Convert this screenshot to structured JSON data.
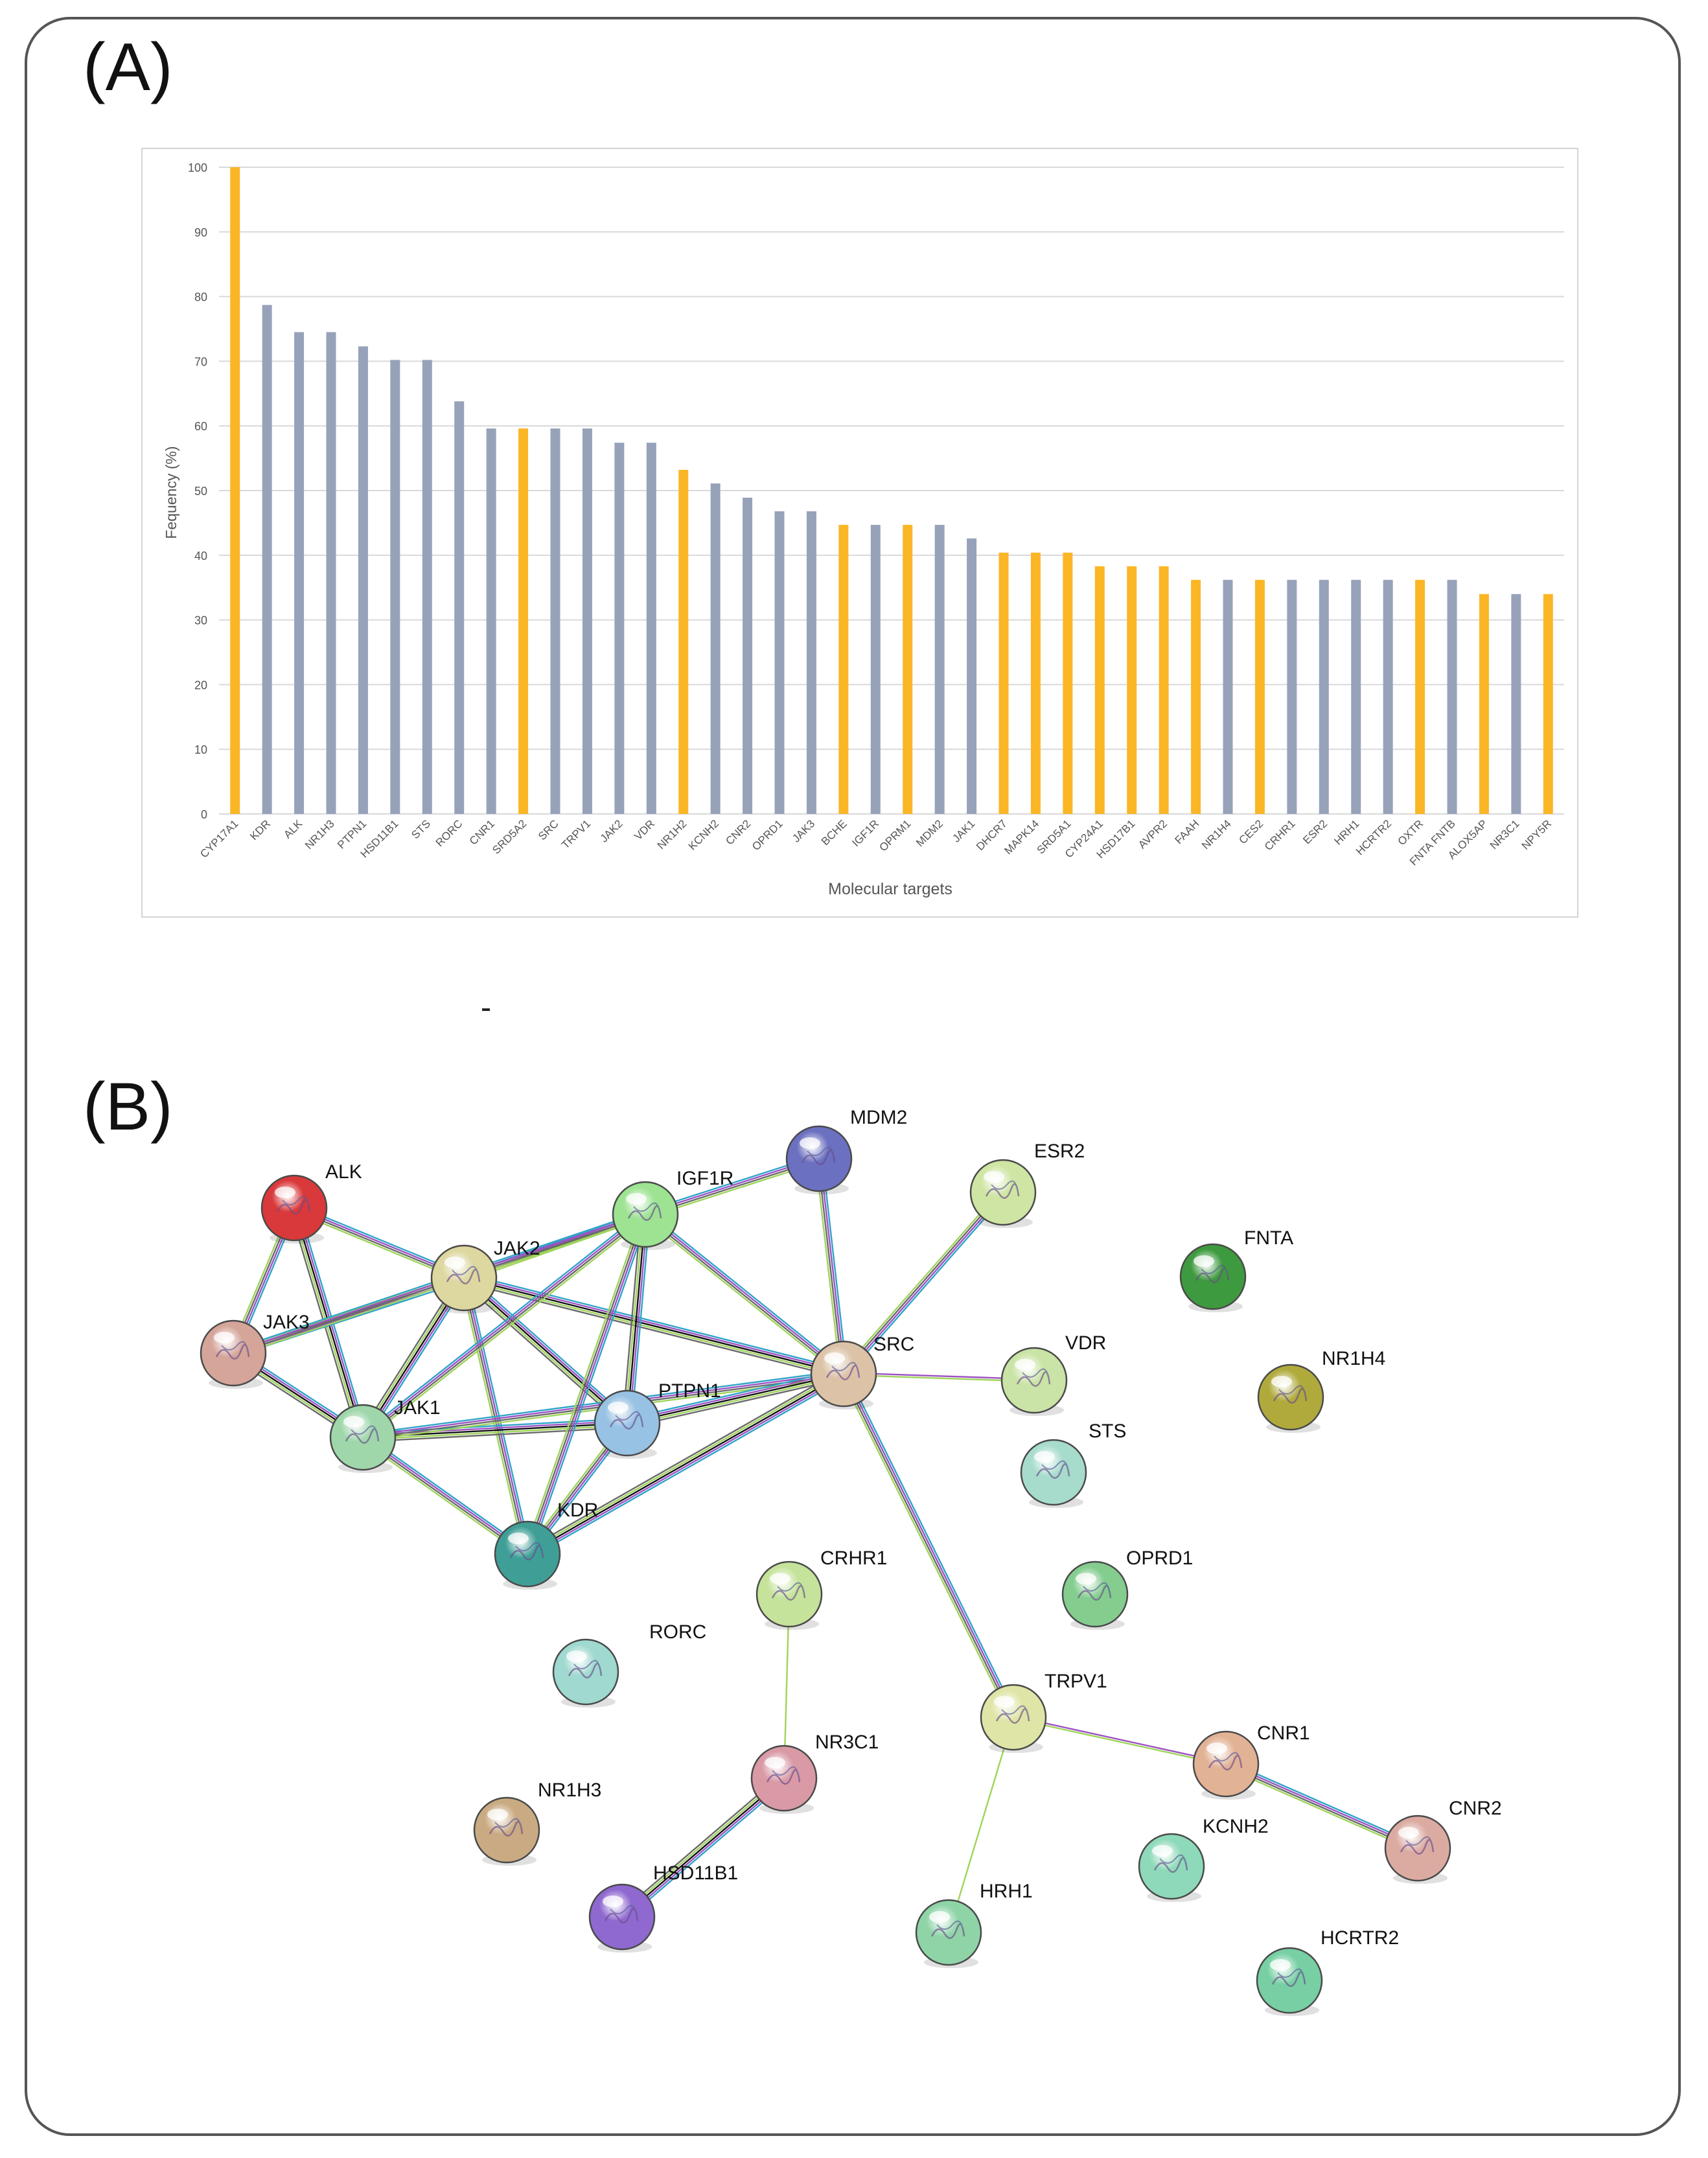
{
  "panels": {
    "a_label": "(A)",
    "b_label": "(B)"
  },
  "stray_mark": "-",
  "colors": {
    "highlight": "#FBB626",
    "default": "#97A2BA",
    "grid": "#d9d9d9",
    "axis_text": "#555555"
  },
  "chart_data": {
    "type": "bar",
    "title": "",
    "xlabel": "Molecular targets",
    "ylabel": "Fequency (%)",
    "ylim": [
      0,
      100
    ],
    "yticks": [
      0,
      10,
      20,
      30,
      40,
      50,
      60,
      70,
      80,
      90,
      100
    ],
    "grid": true,
    "categories": [
      "CYP17A1",
      "KDR",
      "ALK",
      "NR1H3",
      "PTPN1",
      "HSD11B1",
      "STS",
      "RORC",
      "CNR1",
      "SRD5A2",
      "SRC",
      "TRPV1",
      "JAK2",
      "VDR",
      "NR1H2",
      "KCNH2",
      "CNR2",
      "OPRD1",
      "JAK3",
      "BCHE",
      "IGF1R",
      "OPRM1",
      "MDM2",
      "JAK1",
      "DHCR7",
      "MAPK14",
      "SRD5A1",
      "CYP24A1",
      "HSD17B1",
      "AVPR2",
      "FAAH",
      "NR1H4",
      "CES2",
      "CRHR1",
      "ESR2",
      "HRH1",
      "HCRTR2",
      "OXTR",
      "FNTA FNTB",
      "ALOX5AP",
      "NR3C1",
      "NPY5R"
    ],
    "values": [
      100,
      78.7,
      74.5,
      74.5,
      72.3,
      70.2,
      70.2,
      63.8,
      59.6,
      59.6,
      59.6,
      59.6,
      57.4,
      57.4,
      53.2,
      51.1,
      48.9,
      46.8,
      46.8,
      44.7,
      44.7,
      44.7,
      44.7,
      42.6,
      40.4,
      40.4,
      40.4,
      38.3,
      38.3,
      38.3,
      36.2,
      36.2,
      36.2,
      36.2,
      36.2,
      36.2,
      36.2,
      36.2,
      36.2,
      34.0,
      34.0,
      34.0
    ],
    "highlighted": [
      true,
      false,
      false,
      false,
      false,
      false,
      false,
      false,
      false,
      true,
      false,
      false,
      false,
      false,
      true,
      false,
      false,
      false,
      false,
      true,
      false,
      true,
      false,
      false,
      true,
      true,
      true,
      true,
      true,
      true,
      true,
      false,
      true,
      false,
      false,
      false,
      false,
      true,
      false,
      true,
      false,
      true
    ]
  },
  "network": {
    "nodes": [
      {
        "id": "ALK",
        "label": "ALK",
        "color": "#d9393a",
        "icon": "protein-structure-icon"
      },
      {
        "id": "JAK2",
        "label": "JAK2",
        "color": "#ddd7a0",
        "icon": "protein-structure-icon"
      },
      {
        "id": "JAK3",
        "label": "JAK3",
        "color": "#d5a59a",
        "icon": "protein-structure-icon"
      },
      {
        "id": "JAK1",
        "label": "JAK1",
        "color": "#9fd7ab",
        "icon": "protein-structure-icon"
      },
      {
        "id": "IGF1R",
        "label": "IGF1R",
        "color": "#9de392",
        "icon": "protein-structure-icon"
      },
      {
        "id": "MDM2",
        "label": "MDM2",
        "color": "#6b70c0",
        "icon": "protein-structure-icon"
      },
      {
        "id": "ESR2",
        "label": "ESR2",
        "color": "#cfe5a3",
        "icon": "protein-structure-icon"
      },
      {
        "id": "FNTA",
        "label": "FNTA",
        "color": "#3e9a3e",
        "icon": "protein-structure-icon"
      },
      {
        "id": "PTPN1",
        "label": "PTPN1",
        "color": "#98c2e4",
        "icon": "protein-structure-icon"
      },
      {
        "id": "SRC",
        "label": "SRC",
        "color": "#dcc3a8",
        "icon": "protein-structure-icon"
      },
      {
        "id": "VDR",
        "label": "VDR",
        "color": "#c9e4a6",
        "icon": "protein-structure-icon"
      },
      {
        "id": "NR1H4",
        "label": "NR1H4",
        "color": "#b0aa3d",
        "icon": "protein-structure-icon"
      },
      {
        "id": "STS",
        "label": "STS",
        "color": "#a7dccd",
        "icon": "protein-structure-icon"
      },
      {
        "id": "KDR",
        "label": "KDR",
        "color": "#3f9f97",
        "icon": "protein-structure-icon"
      },
      {
        "id": "CRHR1",
        "label": "CRHR1",
        "color": "#c5e39b",
        "icon": "protein-structure-icon"
      },
      {
        "id": "OPRD1",
        "label": "OPRD1",
        "color": "#84cd8f",
        "icon": "protein-structure-icon"
      },
      {
        "id": "RORC",
        "label": "RORC",
        "color": "#9fd9cf",
        "icon": "protein-structure-icon"
      },
      {
        "id": "TRPV1",
        "label": "TRPV1",
        "color": "#dfe5a6",
        "icon": "protein-structure-icon"
      },
      {
        "id": "NR3C1",
        "label": "NR3C1",
        "color": "#d99aa6",
        "icon": "protein-structure-icon"
      },
      {
        "id": "CNR1",
        "label": "CNR1",
        "color": "#e2b295",
        "icon": "protein-structure-icon"
      },
      {
        "id": "NR1H3",
        "label": "NR1H3",
        "color": "#c9aa82",
        "icon": "protein-structure-icon"
      },
      {
        "id": "CNR2",
        "label": "CNR2",
        "color": "#dbaba2",
        "icon": "protein-structure-icon"
      },
      {
        "id": "KCNH2",
        "label": "KCNH2",
        "color": "#8ed9b9",
        "icon": "protein-structure-icon"
      },
      {
        "id": "HSD11B1",
        "label": "HSD11B1",
        "color": "#8f69cf",
        "icon": "protein-structure-icon"
      },
      {
        "id": "HRH1",
        "label": "HRH1",
        "color": "#8fd4a7",
        "icon": "protein-structure-icon"
      },
      {
        "id": "HCRTR2",
        "label": "HCRTR2",
        "color": "#77cfa3",
        "icon": "protein-structure-icon"
      }
    ],
    "edges": [
      {
        "from": "ALK",
        "to": "JAK2",
        "kind": "multi"
      },
      {
        "from": "ALK",
        "to": "JAK3",
        "kind": "multi"
      },
      {
        "from": "ALK",
        "to": "JAK1",
        "kind": "multi-black"
      },
      {
        "from": "JAK2",
        "to": "JAK3",
        "kind": "multi"
      },
      {
        "from": "JAK2",
        "to": "JAK1",
        "kind": "multi-black"
      },
      {
        "from": "JAK2",
        "to": "IGF1R",
        "kind": "multi"
      },
      {
        "from": "JAK2",
        "to": "PTPN1",
        "kind": "multi-black"
      },
      {
        "from": "JAK2",
        "to": "SRC",
        "kind": "multi-black"
      },
      {
        "from": "JAK2",
        "to": "KDR",
        "kind": "multi"
      },
      {
        "from": "JAK3",
        "to": "JAK1",
        "kind": "multi-black"
      },
      {
        "from": "JAK3",
        "to": "IGF1R",
        "kind": "multi"
      },
      {
        "from": "JAK1",
        "to": "IGF1R",
        "kind": "multi"
      },
      {
        "from": "JAK1",
        "to": "PTPN1",
        "kind": "multi-black"
      },
      {
        "from": "JAK1",
        "to": "SRC",
        "kind": "multi"
      },
      {
        "from": "JAK1",
        "to": "KDR",
        "kind": "multi"
      },
      {
        "from": "IGF1R",
        "to": "MDM2",
        "kind": "multi"
      },
      {
        "from": "IGF1R",
        "to": "PTPN1",
        "kind": "multi-black"
      },
      {
        "from": "IGF1R",
        "to": "SRC",
        "kind": "multi"
      },
      {
        "from": "IGF1R",
        "to": "KDR",
        "kind": "multi"
      },
      {
        "from": "MDM2",
        "to": "SRC",
        "kind": "multi"
      },
      {
        "from": "ESR2",
        "to": "SRC",
        "kind": "multi"
      },
      {
        "from": "PTPN1",
        "to": "SRC",
        "kind": "multi-black"
      },
      {
        "from": "PTPN1",
        "to": "KDR",
        "kind": "multi"
      },
      {
        "from": "SRC",
        "to": "KDR",
        "kind": "multi-black"
      },
      {
        "from": "SRC",
        "to": "VDR",
        "kind": "few"
      },
      {
        "from": "SRC",
        "to": "TRPV1",
        "kind": "multi"
      },
      {
        "from": "CRHR1",
        "to": "NR3C1",
        "kind": "single"
      },
      {
        "from": "NR3C1",
        "to": "HSD11B1",
        "kind": "multi-black"
      },
      {
        "from": "TRPV1",
        "to": "CNR1",
        "kind": "few"
      },
      {
        "from": "TRPV1",
        "to": "HRH1",
        "kind": "single"
      },
      {
        "from": "CNR1",
        "to": "CNR2",
        "kind": "multi"
      }
    ]
  }
}
